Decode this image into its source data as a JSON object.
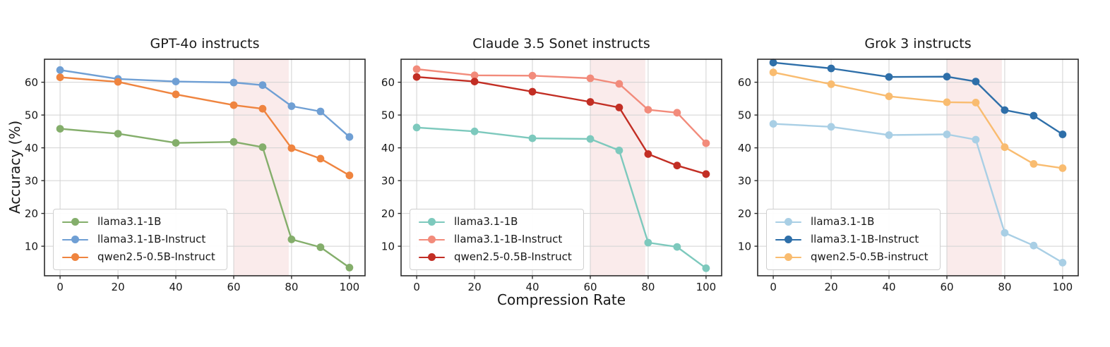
{
  "figure": {
    "xlabel": "Compression Rate",
    "ylabel": "Accuracy (%)",
    "background_color": "#ffffff",
    "text_color": "#191919",
    "grid_color": "#d2d2d2",
    "spine_color": "#2b2b2b",
    "highlight_color": "#faebeb",
    "legend_position": "lower-left"
  },
  "chart_data": [
    {
      "type": "line",
      "title": "GPT-4o instructs",
      "x": [
        0,
        20,
        40,
        60,
        70,
        80,
        90,
        100
      ],
      "xticks": [
        0,
        20,
        40,
        60,
        80,
        100
      ],
      "yticks": [
        10,
        20,
        30,
        40,
        50,
        60
      ],
      "xlim": [
        -5.4,
        105.4
      ],
      "ylim": [
        1,
        67
      ],
      "grid": true,
      "shaded_span": [
        60,
        79
      ],
      "series": [
        {
          "name": "llama3.1-1B",
          "color": "#84ae6b",
          "values": [
            45.8,
            44.3,
            41.5,
            41.8,
            40.2,
            12.1,
            9.7,
            3.5
          ]
        },
        {
          "name": "llama3.1-1B-Instruct",
          "color": "#6f9fd4",
          "values": [
            63.7,
            61.0,
            60.2,
            59.9,
            59.1,
            52.7,
            51.1,
            43.3
          ]
        },
        {
          "name": "qwen2.5-0.5B-Instruct",
          "color": "#ef843f",
          "values": [
            61.5,
            60.1,
            56.3,
            53.0,
            51.9,
            39.9,
            36.7,
            31.6
          ]
        }
      ]
    },
    {
      "type": "line",
      "title": "Claude 3.5 Sonet instructs",
      "x": [
        0,
        20,
        40,
        60,
        70,
        80,
        90,
        100
      ],
      "xticks": [
        0,
        20,
        40,
        60,
        80,
        100
      ],
      "yticks": [
        10,
        20,
        30,
        40,
        50,
        60
      ],
      "xlim": [
        -5.4,
        105.4
      ],
      "ylim": [
        1,
        67
      ],
      "grid": true,
      "shaded_span": [
        60,
        79
      ],
      "series": [
        {
          "name": "llama3.1-1B",
          "color": "#7dc9bd",
          "values": [
            46.2,
            45.0,
            42.9,
            42.7,
            39.2,
            11.1,
            9.8,
            3.3
          ]
        },
        {
          "name": "llama3.1-1B-Instruct",
          "color": "#f28b7b",
          "values": [
            64.0,
            62.1,
            62.0,
            61.2,
            59.5,
            51.6,
            50.7,
            41.4
          ]
        },
        {
          "name": "qwen2.5-0.5B-Instruct",
          "color": "#c22e24",
          "values": [
            61.6,
            60.2,
            57.1,
            54.0,
            52.3,
            38.1,
            34.6,
            32.0
          ]
        }
      ]
    },
    {
      "type": "line",
      "title": "Grok 3 instructs",
      "x": [
        0,
        20,
        40,
        60,
        70,
        80,
        90,
        100
      ],
      "xticks": [
        0,
        20,
        40,
        60,
        80,
        100
      ],
      "yticks": [
        10,
        20,
        30,
        40,
        50,
        60
      ],
      "xlim": [
        -5.4,
        105.4
      ],
      "ylim": [
        1,
        67
      ],
      "grid": true,
      "shaded_span": [
        60,
        79
      ],
      "series": [
        {
          "name": "llama3.1-1B",
          "color": "#a9cfe5",
          "values": [
            47.3,
            46.4,
            43.9,
            44.1,
            42.5,
            14.1,
            10.2,
            5.0
          ]
        },
        {
          "name": "llama3.1-1B-Instruct",
          "color": "#2e6fa9",
          "values": [
            66.0,
            64.2,
            61.6,
            61.7,
            60.2,
            51.5,
            49.8,
            44.1
          ]
        },
        {
          "name": "qwen2.5-0.5B-instruct",
          "color": "#f9bc70",
          "values": [
            63.0,
            59.4,
            55.7,
            53.9,
            53.8,
            40.2,
            35.1,
            33.8
          ]
        }
      ]
    }
  ]
}
